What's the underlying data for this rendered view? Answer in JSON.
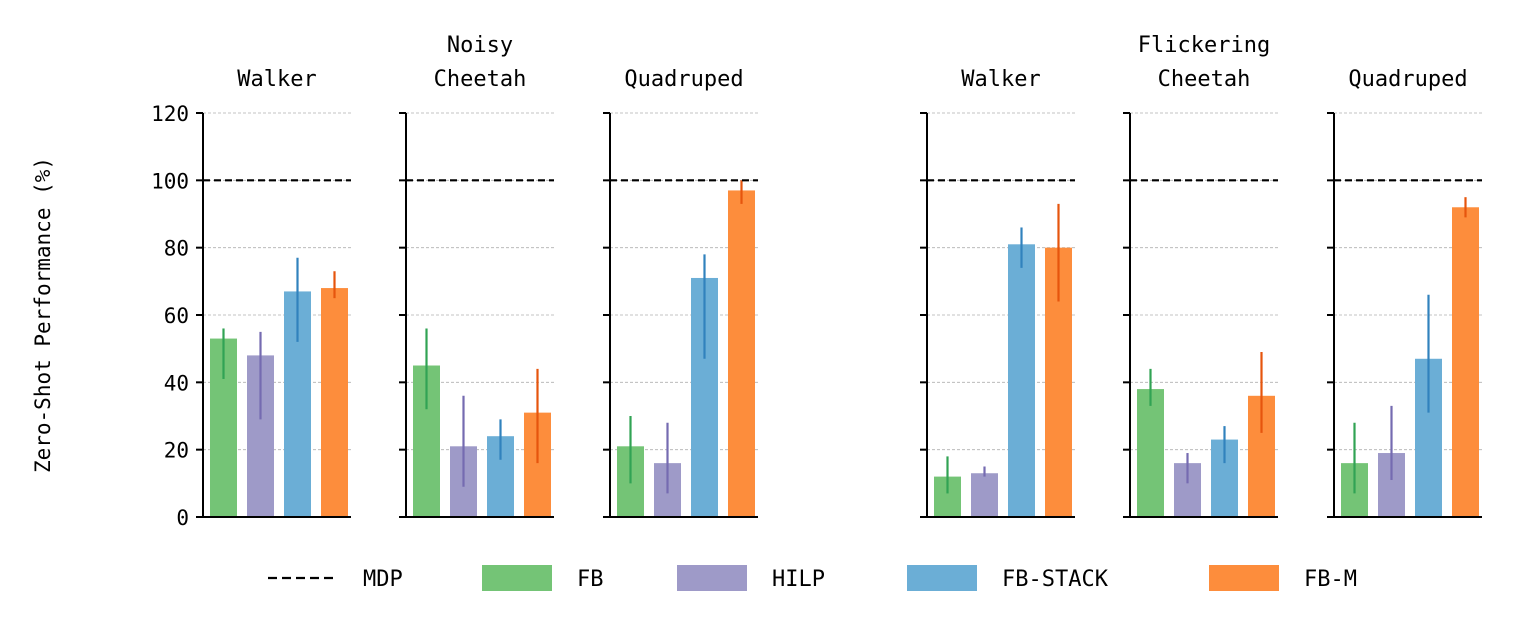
{
  "chart_data": {
    "type": "bar",
    "ylabel": "Zero-Shot Performance (%)",
    "ylim": [
      0,
      120
    ],
    "yticks": [
      0,
      20,
      40,
      60,
      80,
      100,
      120
    ],
    "grid": true,
    "reference_line": {
      "name": "MDP",
      "value": 100
    },
    "series_names": [
      "FB",
      "HILP",
      "FB-STACK",
      "FB-M"
    ],
    "series_colors": [
      "#74c476",
      "#9e9ac8",
      "#6baed6",
      "#fd8d3c"
    ],
    "error_colors": [
      "#31a354",
      "#756bb1",
      "#3182bd",
      "#e6550d"
    ],
    "legend": {
      "placement": "bottom",
      "items": [
        {
          "label": "MDP",
          "style": "dashed-line"
        },
        {
          "label": "FB",
          "color": "#74c476"
        },
        {
          "label": "HILP",
          "color": "#9e9ac8"
        },
        {
          "label": "FB-STACK",
          "color": "#6baed6"
        },
        {
          "label": "FB-M",
          "color": "#fd8d3c"
        }
      ]
    },
    "groups": [
      {
        "title": "Noisy",
        "panels": [
          {
            "title": [
              "Walker"
            ],
            "values": [
              53,
              48,
              67,
              68
            ],
            "err_low": [
              41,
              29,
              52,
              65
            ],
            "err_high": [
              56,
              55,
              77,
              73
            ]
          },
          {
            "title": [
              "Cheetah"
            ],
            "values": [
              45,
              21,
              24,
              31
            ],
            "err_low": [
              32,
              9,
              17,
              16
            ],
            "err_high": [
              56,
              36,
              29,
              44
            ]
          },
          {
            "title": [
              "Quadruped"
            ],
            "values": [
              21,
              16,
              71,
              97
            ],
            "err_low": [
              10,
              7,
              47,
              93
            ],
            "err_high": [
              30,
              28,
              78,
              100
            ]
          }
        ]
      },
      {
        "title": "Flickering",
        "panels": [
          {
            "title": [
              "Walker"
            ],
            "values": [
              12,
              13,
              81,
              80
            ],
            "err_low": [
              7,
              12,
              74,
              64
            ],
            "err_high": [
              18,
              15,
              86,
              93
            ]
          },
          {
            "title": [
              "Cheetah"
            ],
            "values": [
              38,
              16,
              23,
              36
            ],
            "err_low": [
              33,
              10,
              16,
              25
            ],
            "err_high": [
              44,
              19,
              27,
              49
            ]
          },
          {
            "title": [
              "Quadruped"
            ],
            "values": [
              16,
              19,
              47,
              92
            ],
            "err_low": [
              7,
              11,
              31,
              89
            ],
            "err_high": [
              28,
              33,
              66,
              95
            ]
          }
        ]
      }
    ]
  }
}
